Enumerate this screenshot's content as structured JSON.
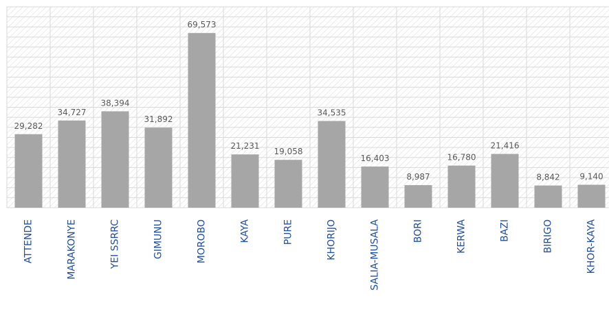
{
  "chart_data": {
    "type": "bar",
    "categories": [
      "ATTENDE",
      "MARAKONYE",
      "YEI SSRRC",
      "GIMUNU",
      "MOROBO",
      "KAYA",
      "PURE",
      "KHORIJO",
      "SALIA-MUSALA",
      "BORI",
      "KERWA",
      "BAZI",
      "BIRIGO",
      "KHOR-KAYA"
    ],
    "values": [
      29282,
      34727,
      38394,
      31892,
      69573,
      21231,
      19058,
      34535,
      16403,
      8987,
      16780,
      21416,
      8842,
      9140
    ],
    "value_labels": [
      "29,282",
      "34,727",
      "38,394",
      "31,892",
      "69,573",
      "21,231",
      "19,058",
      "34,535",
      "16,403",
      "8,987",
      "16,780",
      "21,416",
      "8,842",
      "9,140"
    ],
    "title": "",
    "xlabel": "",
    "ylabel": "",
    "ylim": [
      0,
      80000
    ],
    "grid": true,
    "legend": "none",
    "bar_color": "#a6a6a6",
    "label_color": "#1f4e9c",
    "value_label_color": "#595959",
    "grid_color": "#d9d9d9",
    "hatch_color": "#ececec"
  }
}
